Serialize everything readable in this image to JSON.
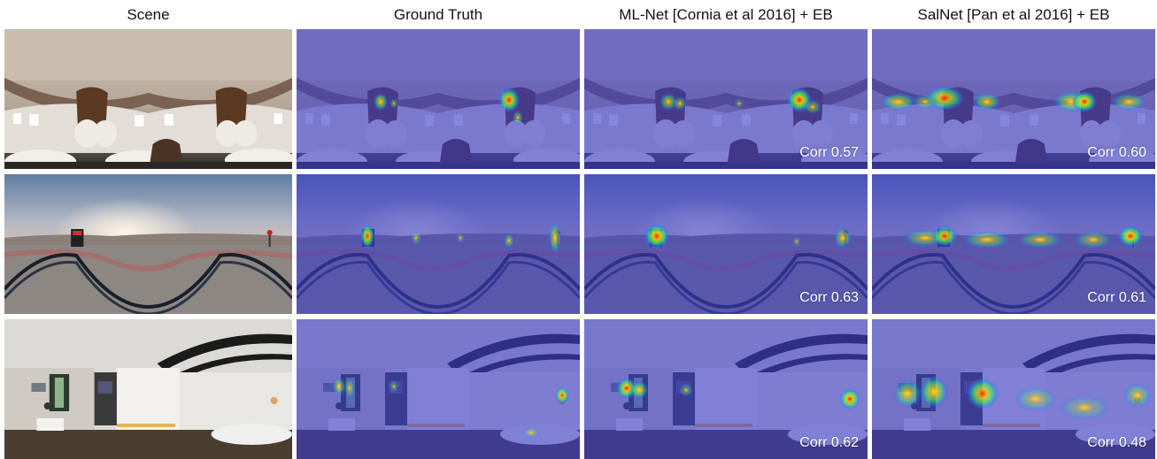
{
  "headers": [
    "Scene",
    "Ground Truth",
    "ML-Net [Cornia et al  2016] + EB",
    "SalNet [Pan et al  2016] + EB"
  ],
  "rows": [
    {
      "scene": "airplane-cabin",
      "corr": [
        null,
        null,
        "Corr 0.57",
        "Corr 0.60"
      ]
    },
    {
      "scene": "desert-railroad",
      "corr": [
        null,
        null,
        "Corr 0.63",
        "Corr 0.61"
      ]
    },
    {
      "scene": "office-interior",
      "corr": [
        null,
        null,
        "Corr 0.62",
        "Corr 0.48"
      ]
    }
  ],
  "colors": {
    "overlay": "#3c3cc8",
    "heat_hot": "#ff2000",
    "heat_warm": "#ffe000",
    "heat_mid": "#30ff60",
    "heat_cool": "#2080ff"
  }
}
